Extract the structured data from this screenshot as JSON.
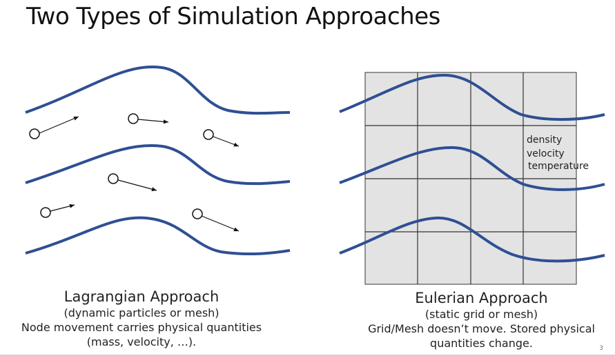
{
  "title": "Two Types of Simulation Approaches",
  "lagrangian": {
    "title": "Lagrangian Approach",
    "line1": "(dynamic particles or mesh)",
    "line2": "Node movement carries physical quantities",
    "line3": "(mass, velocity, …)."
  },
  "eulerian": {
    "title": "Eulerian Approach",
    "line1": "(static grid or mesh)",
    "line2": "Grid/Mesh doesn’t move.  Stored physical",
    "line3": "quantities change.",
    "cell_labels": [
      "density",
      "velocity",
      "temperature"
    ]
  },
  "page_number": "3",
  "colors": {
    "flow_line": "#2f4f93",
    "grid_fill": "#e3e3e3",
    "grid_line": "#333333",
    "arrow": "#111111"
  }
}
